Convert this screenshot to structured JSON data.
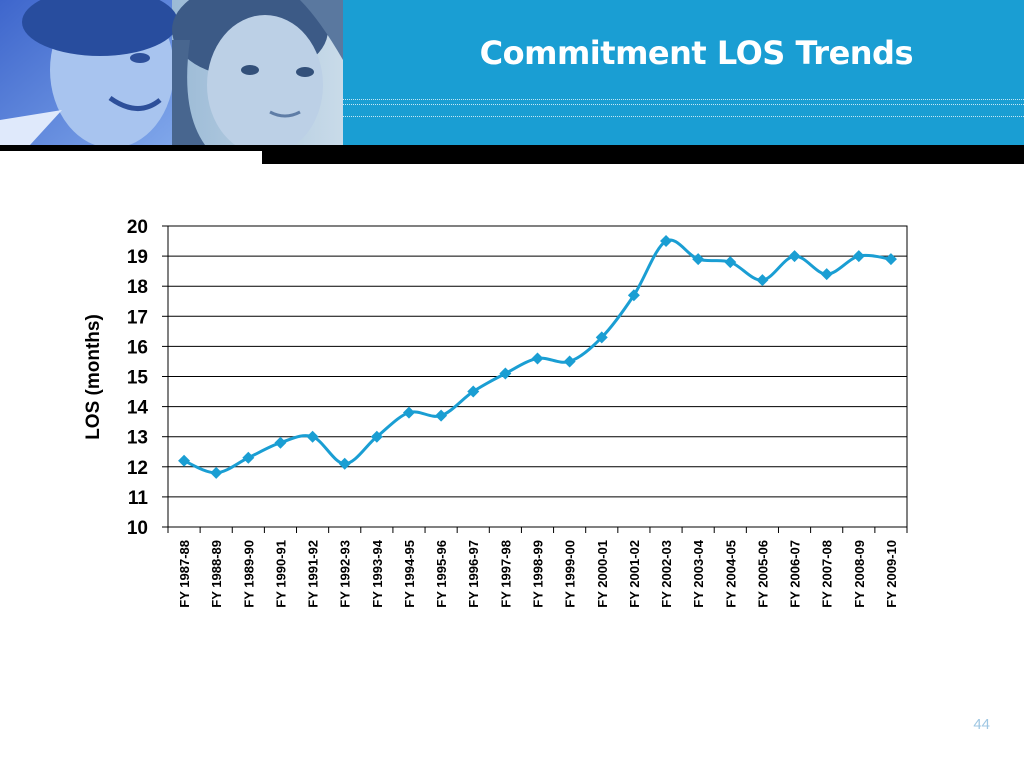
{
  "slide": {
    "title": "Commitment LOS Trends",
    "page_number": "44",
    "colors": {
      "header": "#1a9ed3",
      "series": "#1a9ed3",
      "rule": "#000000",
      "page_number": "#9fc7e3"
    }
  },
  "chart_data": {
    "type": "line",
    "title": "",
    "xlabel": "",
    "ylabel": "LOS (months)",
    "ylim": [
      10,
      20
    ],
    "yticks": [
      "10",
      "11",
      "12",
      "13",
      "14",
      "15",
      "16",
      "17",
      "18",
      "19",
      "20"
    ],
    "grid": true,
    "legend": "none",
    "categories": [
      "FY 1987-88",
      "FY 1988-89",
      "FY 1989-90",
      "FY 1990-91",
      "FY 1991-92",
      "FY 1992-93",
      "FY 1993-94",
      "FY 1994-95",
      "FY 1995-96",
      "FY 1996-97",
      "FY 1997-98",
      "FY 1998-99",
      "FY 1999-00",
      "FY 2000-01",
      "FY 2001-02",
      "FY 2002-03",
      "FY 2003-04",
      "FY 2004-05",
      "FY 2005-06",
      "FY 2006-07",
      "FY 2007-08",
      "FY 2008-09",
      "FY 2009-10"
    ],
    "series": [
      {
        "values": [
          12.2,
          11.8,
          12.3,
          12.8,
          13.0,
          12.1,
          13.0,
          13.8,
          13.7,
          14.5,
          15.1,
          15.6,
          15.5,
          16.3,
          17.7,
          19.5,
          18.9,
          18.8,
          18.2,
          19.0,
          18.4,
          19.0,
          18.9
        ],
        "color": "#1a9ed3",
        "marker": "diamond"
      }
    ]
  }
}
